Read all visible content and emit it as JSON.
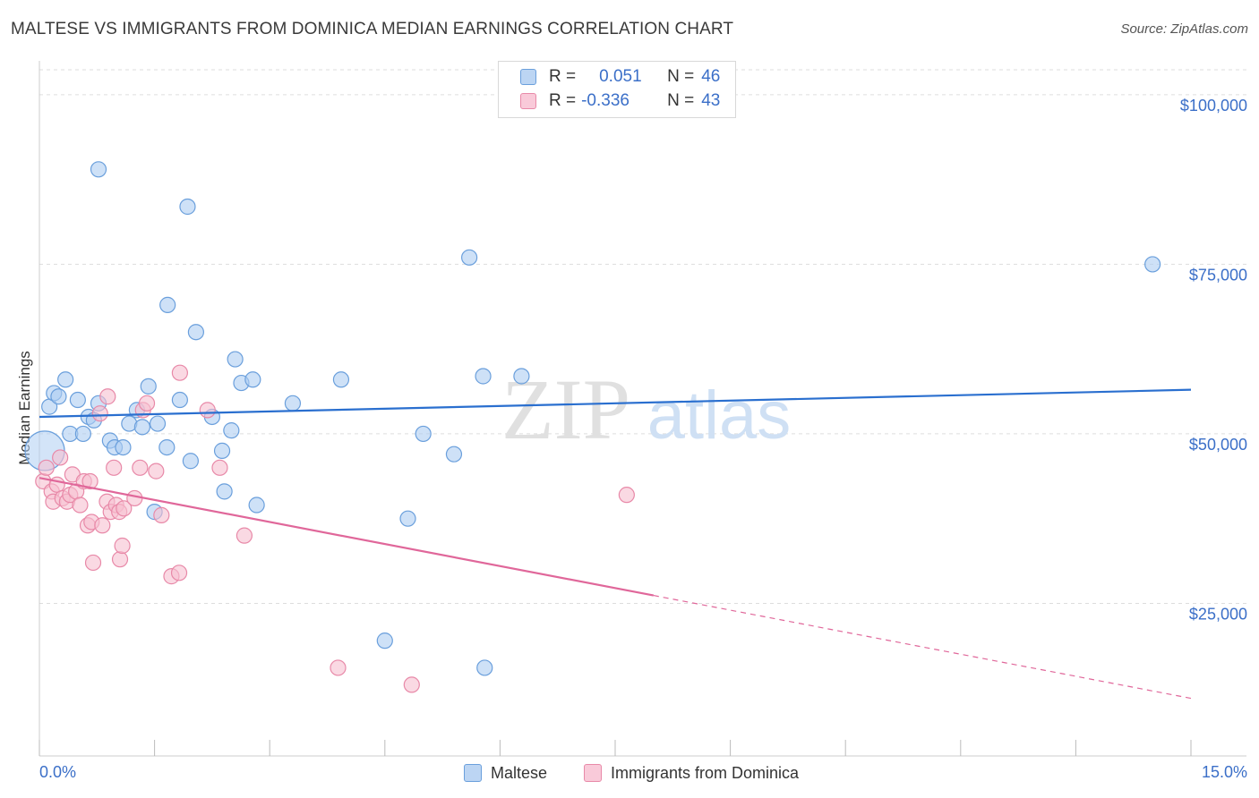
{
  "title": "MALTESE VS IMMIGRANTS FROM DOMINICA MEDIAN EARNINGS CORRELATION CHART",
  "source": "Source: ZipAtlas.com",
  "watermark": {
    "zip": "ZIP",
    "atlas": "atlas"
  },
  "legend": {
    "series": [
      {
        "r_label": "R =",
        "r_value": "0.051",
        "n_label": "N =",
        "n_value": "46"
      },
      {
        "r_label": "R =",
        "r_value": "-0.336",
        "n_label": "N =",
        "n_value": "43"
      }
    ]
  },
  "bottom_legend": [
    "Maltese",
    "Immigrants from Dominica"
  ],
  "chart_data": {
    "type": "scatter",
    "title": "MALTESE VS IMMIGRANTS FROM DOMINICA MEDIAN EARNINGS CORRELATION CHART",
    "xlabel": "",
    "ylabel": "Median Earnings",
    "xlim": [
      0,
      15
    ],
    "ylim": [
      2500,
      105000
    ],
    "x_tick_labels": [
      "0.0%",
      "15.0%"
    ],
    "y_ticks": [
      25000,
      50000,
      75000,
      100000
    ],
    "y_tick_labels": [
      "$25,000",
      "$50,000",
      "$75,000",
      "$100,000"
    ],
    "grid": true,
    "colors": {
      "maltese_fill": "#aecdf2",
      "maltese_stroke": "#6a9fdc",
      "maltese_line": "#2a6fcf",
      "dominica_fill": "#f7bfd0",
      "dominica_stroke": "#e889a8",
      "dominica_line": "#e0679a",
      "axis_text": "#3b6fc8",
      "grid": "#dddddd"
    },
    "series": [
      {
        "name": "Maltese",
        "points": [
          [
            0.07,
            47500
          ],
          [
            0.13,
            54000
          ],
          [
            0.19,
            56000
          ],
          [
            0.25,
            55500
          ],
          [
            0.34,
            58000
          ],
          [
            0.4,
            50000
          ],
          [
            0.5,
            55000
          ],
          [
            0.57,
            50000
          ],
          [
            0.64,
            52500
          ],
          [
            0.71,
            52000
          ],
          [
            0.77,
            54500
          ],
          [
            0.77,
            89000
          ],
          [
            0.92,
            49000
          ],
          [
            0.98,
            48000
          ],
          [
            1.09,
            48000
          ],
          [
            1.17,
            51500
          ],
          [
            1.27,
            53500
          ],
          [
            1.34,
            51000
          ],
          [
            1.42,
            57000
          ],
          [
            1.5,
            38500
          ],
          [
            1.54,
            51500
          ],
          [
            1.66,
            48000
          ],
          [
            1.67,
            69000
          ],
          [
            1.83,
            55000
          ],
          [
            1.93,
            83500
          ],
          [
            1.97,
            46000
          ],
          [
            2.04,
            65000
          ],
          [
            2.25,
            52500
          ],
          [
            2.38,
            47500
          ],
          [
            2.41,
            41500
          ],
          [
            2.5,
            50500
          ],
          [
            2.55,
            61000
          ],
          [
            2.63,
            57500
          ],
          [
            2.78,
            58000
          ],
          [
            2.83,
            39500
          ],
          [
            3.3,
            54500
          ],
          [
            3.93,
            58000
          ],
          [
            4.5,
            19500
          ],
          [
            4.8,
            37500
          ],
          [
            5.0,
            50000
          ],
          [
            5.4,
            47000
          ],
          [
            5.6,
            76000
          ],
          [
            5.78,
            58500
          ],
          [
            5.8,
            15500
          ],
          [
            6.28,
            58500
          ],
          [
            14.5,
            75000
          ]
        ]
      },
      {
        "name": "Immigrants from Dominica",
        "points": [
          [
            0.05,
            43000
          ],
          [
            0.09,
            45000
          ],
          [
            0.16,
            41500
          ],
          [
            0.18,
            40000
          ],
          [
            0.23,
            42500
          ],
          [
            0.27,
            46500
          ],
          [
            0.3,
            40500
          ],
          [
            0.36,
            40000
          ],
          [
            0.4,
            41000
          ],
          [
            0.43,
            44000
          ],
          [
            0.48,
            41500
          ],
          [
            0.53,
            39500
          ],
          [
            0.58,
            43000
          ],
          [
            0.63,
            36500
          ],
          [
            0.66,
            43000
          ],
          [
            0.68,
            37000
          ],
          [
            0.7,
            31000
          ],
          [
            0.79,
            53000
          ],
          [
            0.82,
            36500
          ],
          [
            0.88,
            40000
          ],
          [
            0.89,
            55500
          ],
          [
            0.93,
            38500
          ],
          [
            0.97,
            45000
          ],
          [
            1.0,
            39500
          ],
          [
            1.04,
            38500
          ],
          [
            1.05,
            31500
          ],
          [
            1.08,
            33500
          ],
          [
            1.1,
            39000
          ],
          [
            1.24,
            40500
          ],
          [
            1.31,
            45000
          ],
          [
            1.35,
            53500
          ],
          [
            1.4,
            54500
          ],
          [
            1.52,
            44500
          ],
          [
            1.59,
            38000
          ],
          [
            1.72,
            29000
          ],
          [
            1.82,
            29500
          ],
          [
            1.83,
            59000
          ],
          [
            2.19,
            53500
          ],
          [
            2.35,
            45000
          ],
          [
            2.67,
            35000
          ],
          [
            3.89,
            15500
          ],
          [
            4.85,
            13000
          ],
          [
            7.65,
            41000
          ]
        ]
      }
    ],
    "trend_lines": [
      {
        "series": "Maltese",
        "x": [
          0,
          15
        ],
        "y": [
          52500,
          56500
        ],
        "dashed_from": null
      },
      {
        "series": "Immigrants from Dominica",
        "x": [
          0,
          15
        ],
        "y": [
          43500,
          11000
        ],
        "dashed_from": 8
      }
    ]
  }
}
